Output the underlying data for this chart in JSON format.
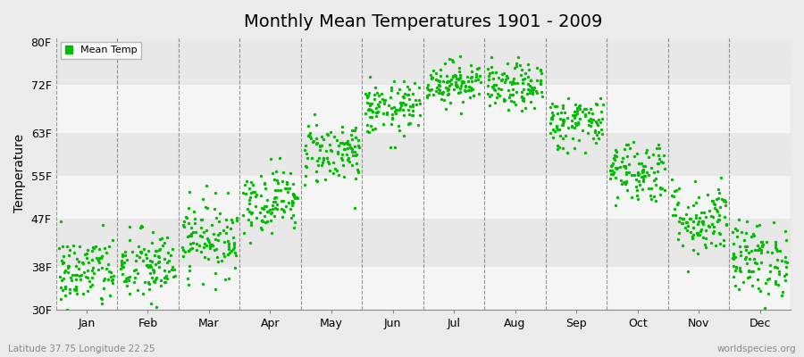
{
  "title": "Monthly Mean Temperatures 1901 - 2009",
  "ylabel": "Temperature",
  "bottom_left_text": "Latitude 37.75 Longitude 22.25",
  "bottom_right_text": "worldspecies.org",
  "legend_label": "Mean Temp",
  "dot_color": "#00BB00",
  "background_color": "#EBEBEB",
  "band_colors": [
    "#F5F5F5",
    "#E8E8E8",
    "#F5F5F5",
    "#E8E8E8",
    "#F5F5F5",
    "#E8E8E8"
  ],
  "yticks": [
    30,
    38,
    47,
    55,
    63,
    72,
    80
  ],
  "ytick_labels": [
    "30F",
    "38F",
    "47F",
    "55F",
    "63F",
    "72F",
    "80F"
  ],
  "ylim": [
    30,
    81
  ],
  "months": [
    "Jan",
    "Feb",
    "Mar",
    "Apr",
    "May",
    "Jun",
    "Jul",
    "Aug",
    "Sep",
    "Oct",
    "Nov",
    "Dec"
  ],
  "month_means_F": [
    37.0,
    38.0,
    43.5,
    50.5,
    59.5,
    67.5,
    72.5,
    71.5,
    65.0,
    56.0,
    47.0,
    39.5
  ],
  "month_stds_F": [
    3.5,
    3.5,
    3.5,
    3.0,
    3.0,
    2.5,
    2.0,
    2.2,
    2.5,
    3.0,
    3.5,
    3.5
  ],
  "n_years": 109,
  "dot_size": 6,
  "seed": 42
}
